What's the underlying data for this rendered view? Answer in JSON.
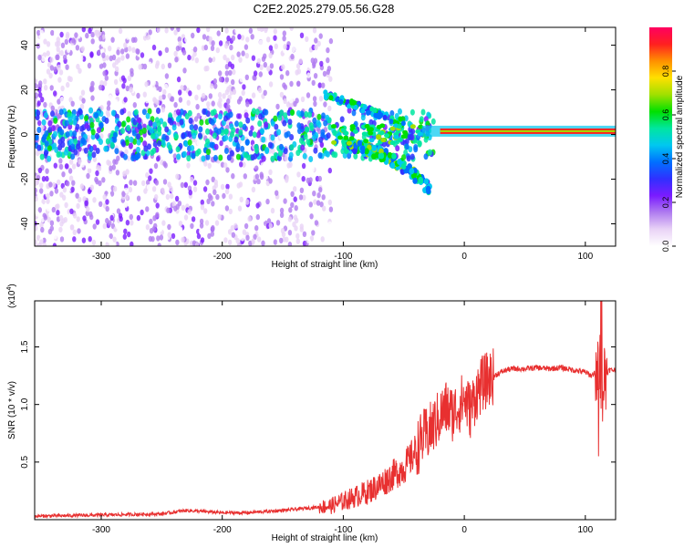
{
  "title": "C2E2.2025.279.05.56.G28",
  "colors": {
    "axis": "#000000",
    "snr_line": "#e83030",
    "colorbar_stops": [
      "#ffffff",
      "#e9d3f6",
      "#b07cf0",
      "#7a1bff",
      "#3030ff",
      "#0070ff",
      "#00c8f0",
      "#00e6a0",
      "#00e000",
      "#a0e000",
      "#ffe000",
      "#ff9000",
      "#ff2020",
      "#ff0060"
    ]
  },
  "chart_data": [
    {
      "id": "spectrogram",
      "type": "heatmap",
      "xlabel": "Height of straight line (km)",
      "ylabel": "Frequency (Hz)",
      "xlim": [
        -355,
        125
      ],
      "ylim": [
        -50,
        48
      ],
      "xticks": [
        -300,
        -200,
        -100,
        0,
        100
      ],
      "yticks": [
        -40,
        -20,
        0,
        20,
        40
      ],
      "xtick_labels": [
        "-300",
        "-200",
        "-100",
        "0",
        "100"
      ],
      "ytick_labels": [
        "-40",
        "-20",
        "0",
        "20",
        "40"
      ],
      "grid": false,
      "colorbar": {
        "label": "Normalized spectral amplitude",
        "range": [
          0.0,
          1.0
        ],
        "ticks": [
          0.0,
          0.2,
          0.4,
          0.6,
          0.8
        ],
        "tick_labels": [
          "0.0",
          "0.2",
          "0.4",
          "0.6",
          "0.8"
        ]
      },
      "features": [
        {
          "name": "carrier line",
          "x_range": [
            -20,
            125
          ],
          "frequency_hz": 1.5,
          "amplitude": 0.95
        },
        {
          "name": "upper branch",
          "x_range": [
            -115,
            -50
          ],
          "frequency_hz": [
            18,
            5
          ]
        },
        {
          "name": "lower branch",
          "x_range": [
            -100,
            -28
          ],
          "frequency_hz": [
            -5,
            -25
          ]
        },
        {
          "name": "noise band",
          "x_range": [
            -355,
            -110
          ],
          "frequency_hz": [
            -50,
            48
          ],
          "amplitude": 0.1
        }
      ]
    },
    {
      "id": "snr",
      "type": "line",
      "xlabel": "Height of straight line (km)",
      "ylabel": "SNR (10 * v/v)",
      "scale_label": "(x10",
      "scale_exponent": "4",
      "scale_suffix": ")",
      "xlim": [
        -355,
        125
      ],
      "ylim": [
        0,
        1.9
      ],
      "xticks": [
        -300,
        -200,
        -100,
        0,
        100
      ],
      "yticks": [
        0.5,
        1.0,
        1.5
      ],
      "xtick_labels": [
        "-300",
        "-200",
        "-100",
        "0",
        "100"
      ],
      "ytick_labels": [
        "0.5",
        "1.0",
        "1.5"
      ],
      "grid": false,
      "series": [
        {
          "name": "SNR",
          "x": [
            -355,
            -300,
            -250,
            -230,
            -200,
            -180,
            -150,
            -130,
            -110,
            -100,
            -90,
            -80,
            -70,
            -60,
            -50,
            -45,
            -40,
            -35,
            -30,
            -25,
            -20,
            -15,
            -10,
            -5,
            0,
            5,
            10,
            15,
            20,
            25,
            30,
            35,
            40,
            50,
            60,
            70,
            80,
            90,
            100,
            105,
            110,
            112,
            115,
            118,
            120,
            125
          ],
          "y": [
            0.03,
            0.04,
            0.05,
            0.08,
            0.06,
            0.06,
            0.08,
            0.1,
            0.12,
            0.16,
            0.2,
            0.24,
            0.3,
            0.38,
            0.45,
            0.52,
            0.6,
            0.7,
            0.75,
            0.82,
            0.9,
            0.97,
            0.92,
            0.98,
            1.05,
            0.95,
            1.1,
            1.18,
            1.22,
            1.25,
            1.28,
            1.3,
            1.31,
            1.31,
            1.32,
            1.31,
            1.32,
            1.3,
            1.28,
            1.25,
            1.3,
            1.32,
            1.2,
            1.28,
            1.3,
            1.3
          ]
        }
      ]
    }
  ]
}
